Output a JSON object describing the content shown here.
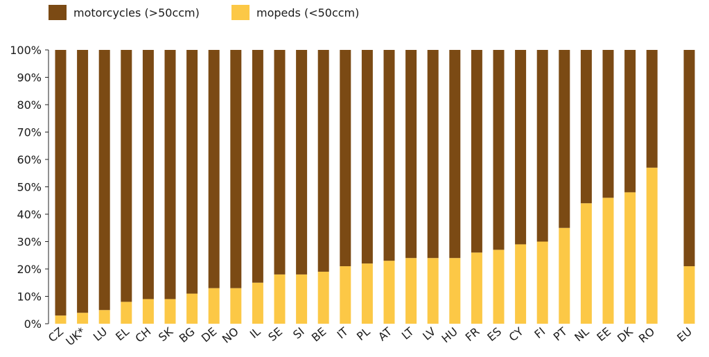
{
  "chart_data": {
    "type": "bar",
    "stacked": true,
    "categories": [
      "CZ",
      "UK*",
      "LU",
      "EL",
      "CH",
      "SK",
      "BG",
      "DE",
      "NO",
      "IL",
      "SE",
      "SI",
      "BE",
      "IT",
      "PL",
      "AT",
      "LT",
      "LV",
      "HU",
      "FR",
      "ES",
      "CY",
      "FI",
      "PT",
      "NL",
      "EE",
      "DK",
      "RO",
      "EU"
    ],
    "series": [
      {
        "name": "mopeds (<50ccm)",
        "color": "#FCC846",
        "values": [
          3,
          4,
          5,
          8,
          9,
          9,
          11,
          13,
          13,
          15,
          18,
          18,
          19,
          21,
          22,
          23,
          24,
          24,
          24,
          26,
          27,
          29,
          30,
          35,
          44,
          46,
          48,
          57,
          21
        ]
      },
      {
        "name": "motorcycles (>50ccm)",
        "color": "#7B4A14",
        "values": [
          97,
          96,
          95,
          92,
          91,
          91,
          89,
          87,
          87,
          85,
          82,
          82,
          81,
          79,
          78,
          77,
          76,
          76,
          76,
          74,
          73,
          71,
          70,
          65,
          56,
          54,
          52,
          43,
          79
        ]
      }
    ],
    "yticks": [
      "0%",
      "10%",
      "20%",
      "30%",
      "40%",
      "50%",
      "60%",
      "70%",
      "80%",
      "90%",
      "100%"
    ],
    "ylim": [
      0,
      100
    ],
    "gap_before": "EU",
    "grid": false,
    "legend_position": "top-left"
  },
  "legend": {
    "motorcycles_label": "motorcycles (>50ccm)",
    "mopeds_label": "mopeds (<50ccm)"
  }
}
